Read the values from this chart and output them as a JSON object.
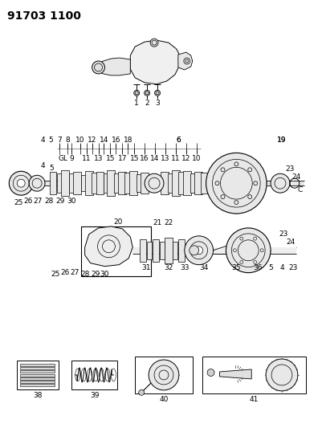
{
  "title": "91703 1100",
  "bg_color": "#ffffff",
  "line_color": "#000000",
  "title_fontsize": 10,
  "label_fontsize": 6.5,
  "fig_width": 4.02,
  "fig_height": 5.33,
  "dpi": 100
}
